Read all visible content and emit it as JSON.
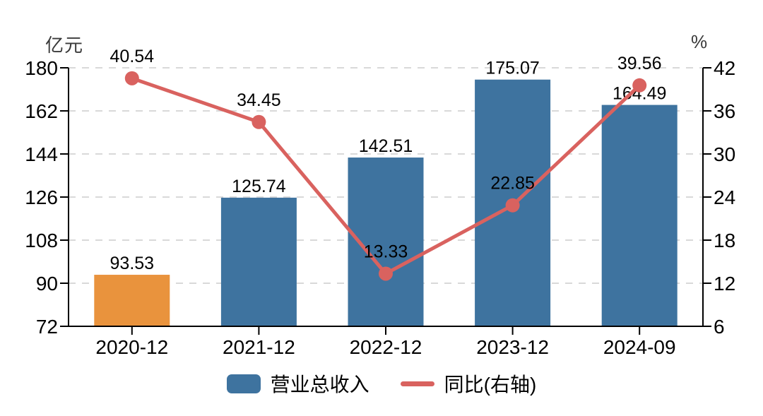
{
  "chart_data": {
    "type": "bar",
    "categories": [
      "2020-12",
      "2021-12",
      "2022-12",
      "2023-12",
      "2024-09"
    ],
    "series": [
      {
        "name": "营业总收入",
        "type": "bar",
        "axis": "left",
        "values": [
          93.53,
          125.74,
          142.51,
          175.07,
          164.49
        ],
        "value_labels": [
          "93.53",
          "125.74",
          "142.51",
          "175.07",
          "164.49"
        ],
        "bar_colors": [
          "#e9933d",
          "#3e739f",
          "#3e739f",
          "#3e739f",
          "#3e739f"
        ]
      },
      {
        "name": "同比(右轴)",
        "type": "line",
        "axis": "right",
        "values": [
          40.54,
          34.45,
          13.33,
          22.85,
          39.56
        ],
        "value_labels": [
          "40.54",
          "34.45",
          "13.33",
          "22.85",
          "39.56"
        ],
        "color": "#d9625f"
      }
    ],
    "left_axis": {
      "unit": "亿元",
      "min": 72,
      "max": 180,
      "ticks": [
        72,
        90,
        108,
        126,
        144,
        162,
        180
      ]
    },
    "right_axis": {
      "unit": "%",
      "min": 6,
      "max": 42,
      "ticks": [
        6,
        12,
        18,
        24,
        30,
        36,
        42
      ]
    },
    "grid": "dashed horizontal",
    "legend_position": "bottom"
  },
  "colors": {
    "bar": "#3e739f",
    "bar_highlight": "#e9933d",
    "line": "#d9625f",
    "grid": "#d9d9d9",
    "axis": "#000000",
    "unit_text": "#3a3a3a",
    "label_text": "#000000"
  }
}
